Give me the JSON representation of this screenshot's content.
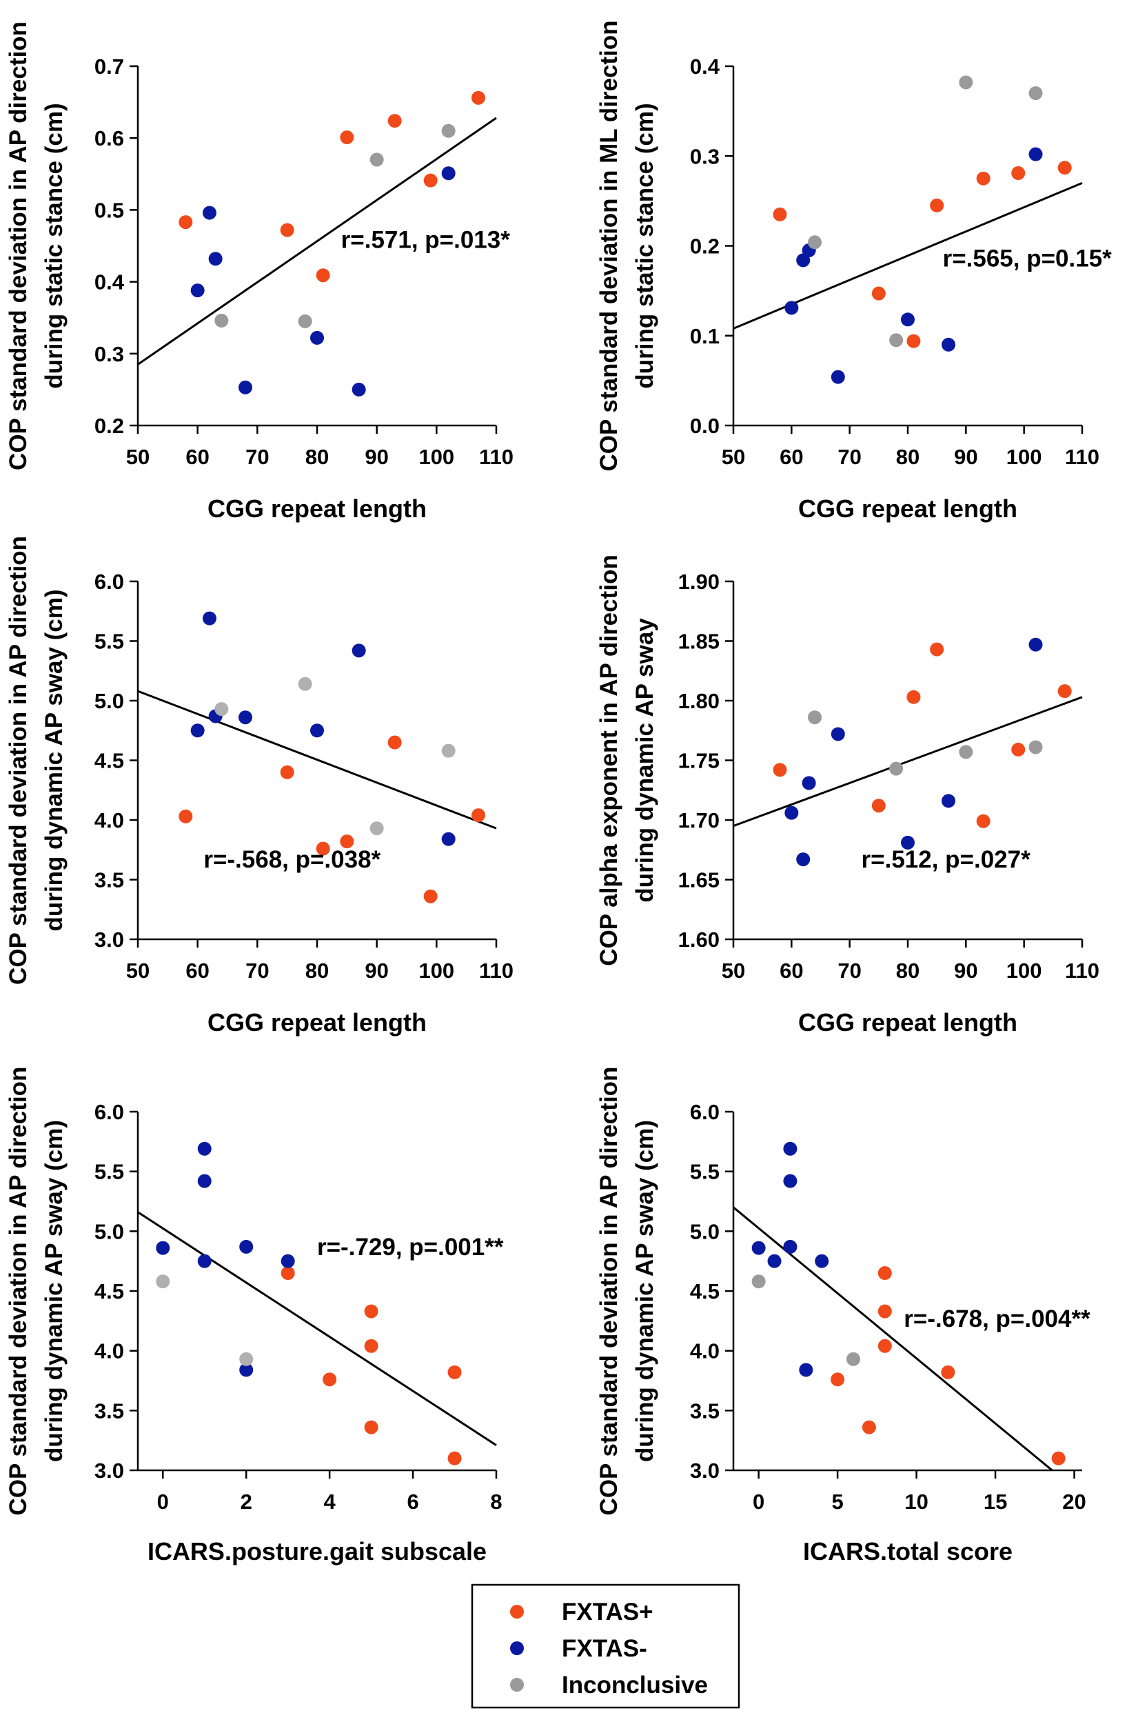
{
  "figure": {
    "legend": {
      "entries": [
        {
          "label": "FXTAS+",
          "color": "#f04a1a"
        },
        {
          "label": "FXTAS-",
          "color": "#0a1aa0"
        },
        {
          "label": "Inconclusive",
          "color": "#9a9a9a"
        }
      ]
    }
  },
  "chart_data": [
    {
      "type": "scatter",
      "panel": "top-left",
      "xlabel": "CGG repeat length",
      "ylabel_lines": [
        "COP standard deviation in AP direction",
        "during static stance (cm)"
      ],
      "xlim": [
        50,
        110
      ],
      "ylim": [
        0.2,
        0.7
      ],
      "xticks": [
        50,
        60,
        70,
        80,
        90,
        100,
        110
      ],
      "xtick_labels": [
        "50",
        "60",
        "70",
        "80",
        "90",
        "100",
        "110"
      ],
      "yticks": [
        0.2,
        0.3,
        0.4,
        0.5,
        0.6,
        0.7
      ],
      "ytick_labels": [
        "0.2",
        "0.3",
        "0.4",
        "0.5",
        "0.6",
        "0.7"
      ],
      "annotation": "r=.571, p=.013*",
      "annotation_anchor": [
        84,
        0.447
      ],
      "trendline": [
        [
          50,
          0.285
        ],
        [
          110,
          0.628
        ]
      ],
      "series": [
        {
          "name": "FXTAS+",
          "color": "#f04a1a",
          "points": [
            [
              58,
              0.483
            ],
            [
              75,
              0.472
            ],
            [
              81,
              0.409
            ],
            [
              85,
              0.601
            ],
            [
              93,
              0.624
            ],
            [
              99,
              0.541
            ],
            [
              107,
              0.656
            ]
          ]
        },
        {
          "name": "FXTAS-",
          "color": "#0a1aa0",
          "points": [
            [
              60,
              0.388
            ],
            [
              62,
              0.496
            ],
            [
              63,
              0.432
            ],
            [
              68,
              0.253
            ],
            [
              80,
              0.322
            ],
            [
              87,
              0.25
            ],
            [
              102,
              0.551
            ]
          ]
        },
        {
          "name": "Inconclusive",
          "color": "#9a9a9a",
          "points": [
            [
              64,
              0.346
            ],
            [
              78,
              0.345
            ],
            [
              90,
              0.57
            ],
            [
              102,
              0.61
            ]
          ]
        }
      ]
    },
    {
      "type": "scatter",
      "panel": "top-right",
      "xlabel": "CGG repeat length",
      "ylabel_lines": [
        "COP standard deviation in ML direction",
        "during static stance (cm)"
      ],
      "xlim": [
        50,
        110
      ],
      "ylim": [
        0.0,
        0.4
      ],
      "xticks": [
        50,
        60,
        70,
        80,
        90,
        100,
        110
      ],
      "xtick_labels": [
        "50",
        "60",
        "70",
        "80",
        "90",
        "100",
        "110"
      ],
      "yticks": [
        0.0,
        0.1,
        0.2,
        0.3,
        0.4
      ],
      "ytick_labels": [
        "0.0",
        "0.1",
        "0.2",
        "0.3",
        "0.4"
      ],
      "annotation": "r=.565, p=0.15*",
      "annotation_anchor": [
        86,
        0.177
      ],
      "trendline": [
        [
          50,
          0.108
        ],
        [
          110,
          0.27
        ]
      ],
      "series": [
        {
          "name": "FXTAS+",
          "color": "#f04a1a",
          "points": [
            [
              58,
              0.235
            ],
            [
              75,
              0.147
            ],
            [
              81,
              0.094
            ],
            [
              85,
              0.245
            ],
            [
              93,
              0.275
            ],
            [
              99,
              0.281
            ],
            [
              107,
              0.287
            ]
          ]
        },
        {
          "name": "FXTAS-",
          "color": "#0a1aa0",
          "points": [
            [
              60,
              0.131
            ],
            [
              62,
              0.184
            ],
            [
              63,
              0.195
            ],
            [
              68,
              0.054
            ],
            [
              80,
              0.118
            ],
            [
              87,
              0.09
            ],
            [
              102,
              0.302
            ]
          ]
        },
        {
          "name": "Inconclusive",
          "color": "#9a9a9a",
          "points": [
            [
              64,
              0.204
            ],
            [
              78,
              0.095
            ],
            [
              90,
              0.382
            ],
            [
              102,
              0.37
            ]
          ]
        }
      ]
    },
    {
      "type": "scatter",
      "panel": "middle-left",
      "xlabel": "CGG repeat length",
      "ylabel_lines": [
        "COP standard deviation in AP direction",
        "during dynamic AP sway (cm)"
      ],
      "xlim": [
        50,
        110
      ],
      "ylim": [
        3.0,
        6.0
      ],
      "xticks": [
        50,
        60,
        70,
        80,
        90,
        100,
        110
      ],
      "xtick_labels": [
        "50",
        "60",
        "70",
        "80",
        "90",
        "100",
        "110"
      ],
      "yticks": [
        3.0,
        3.5,
        4.0,
        4.5,
        5.0,
        5.5,
        6.0
      ],
      "ytick_labels": [
        "3.0",
        "3.5",
        "4.0",
        "4.5",
        "5.0",
        "5.5",
        "6.0"
      ],
      "annotation": "r=-.568, p=.038*",
      "annotation_anchor": [
        61,
        3.6
      ],
      "trendline": [
        [
          50,
          5.08
        ],
        [
          110,
          3.93
        ]
      ],
      "series": [
        {
          "name": "FXTAS+",
          "color": "#f04a1a",
          "points": [
            [
              58,
              4.03
            ],
            [
              75,
              4.4
            ],
            [
              81,
              3.76
            ],
            [
              85,
              3.82
            ],
            [
              93,
              4.65
            ],
            [
              99,
              3.36
            ],
            [
              107,
              4.04
            ]
          ]
        },
        {
          "name": "FXTAS-",
          "color": "#0a1aa0",
          "points": [
            [
              60,
              4.75
            ],
            [
              62,
              5.69
            ],
            [
              63,
              4.87
            ],
            [
              68,
              4.86
            ],
            [
              80,
              4.75
            ],
            [
              87,
              5.42
            ],
            [
              102,
              3.84
            ]
          ]
        },
        {
          "name": "Inconclusive",
          "color": "#b0b0b0",
          "points": [
            [
              64,
              4.93
            ],
            [
              78,
              5.14
            ],
            [
              90,
              3.93
            ],
            [
              102,
              4.58
            ]
          ]
        }
      ]
    },
    {
      "type": "scatter",
      "panel": "middle-right",
      "xlabel": "CGG repeat length",
      "ylabel_lines": [
        "COP alpha exponent in AP direction",
        "during dynamic AP sway"
      ],
      "xlim": [
        50,
        110
      ],
      "ylim": [
        1.6,
        1.9
      ],
      "xticks": [
        50,
        60,
        70,
        80,
        90,
        100,
        110
      ],
      "xtick_labels": [
        "50",
        "60",
        "70",
        "80",
        "90",
        "100",
        "110"
      ],
      "yticks": [
        1.6,
        1.65,
        1.7,
        1.75,
        1.8,
        1.85,
        1.9
      ],
      "ytick_labels": [
        "1.60",
        "1.65",
        "1.70",
        "1.75",
        "1.80",
        "1.85",
        "1.90"
      ],
      "annotation": "r=.512, p=.027*",
      "annotation_anchor": [
        72,
        1.66
      ],
      "trendline": [
        [
          50,
          1.695
        ],
        [
          110,
          1.803
        ]
      ],
      "series": [
        {
          "name": "FXTAS+",
          "color": "#f04a1a",
          "points": [
            [
              58,
              1.742
            ],
            [
              75,
              1.712
            ],
            [
              81,
              1.803
            ],
            [
              85,
              1.843
            ],
            [
              93,
              1.699
            ],
            [
              99,
              1.759
            ],
            [
              107,
              1.808
            ]
          ]
        },
        {
          "name": "FXTAS-",
          "color": "#0a1aa0",
          "points": [
            [
              60,
              1.706
            ],
            [
              62,
              1.667
            ],
            [
              63,
              1.731
            ],
            [
              68,
              1.772
            ],
            [
              80,
              1.681
            ],
            [
              87,
              1.716
            ],
            [
              102,
              1.847
            ]
          ]
        },
        {
          "name": "Inconclusive",
          "color": "#9a9a9a",
          "points": [
            [
              64,
              1.786
            ],
            [
              78,
              1.743
            ],
            [
              90,
              1.757
            ],
            [
              102,
              1.761
            ]
          ]
        }
      ]
    },
    {
      "type": "scatter",
      "panel": "bottom-left",
      "xlabel": "ICARS.posture.gait subscale",
      "ylabel_lines": [
        "COP standard deviation in AP direction",
        "during dynamic AP sway (cm)"
      ],
      "xlim": [
        -0.6,
        8
      ],
      "ylim": [
        3.0,
        6.0
      ],
      "xticks": [
        0,
        2,
        4,
        6,
        8
      ],
      "xtick_labels": [
        "0",
        "2",
        "4",
        "6",
        "8"
      ],
      "yticks": [
        3.0,
        3.5,
        4.0,
        4.5,
        5.0,
        5.5,
        6.0
      ],
      "ytick_labels": [
        "3.0",
        "3.5",
        "4.0",
        "4.5",
        "5.0",
        "5.5",
        "6.0"
      ],
      "annotation": "r=-.729, p=.001**",
      "annotation_anchor": [
        3.7,
        4.8
      ],
      "trendline": [
        [
          -0.6,
          5.16
        ],
        [
          8,
          3.21
        ]
      ],
      "series": [
        {
          "name": "FXTAS+",
          "color": "#f04a1a",
          "points": [
            [
              3,
              4.65
            ],
            [
              4,
              3.76
            ],
            [
              5,
              4.33
            ],
            [
              5,
              4.04
            ],
            [
              5,
              3.36
            ],
            [
              7,
              3.82
            ],
            [
              7,
              3.1
            ]
          ]
        },
        {
          "name": "FXTAS-",
          "color": "#0a1aa0",
          "points": [
            [
              0,
              4.86
            ],
            [
              1,
              5.69
            ],
            [
              1,
              5.42
            ],
            [
              1,
              4.75
            ],
            [
              2,
              4.87
            ],
            [
              2,
              3.84
            ],
            [
              3,
              4.75
            ]
          ]
        },
        {
          "name": "Inconclusive",
          "color": "#b0b0b0",
          "points": [
            [
              0,
              4.58
            ],
            [
              2,
              3.93
            ]
          ]
        }
      ]
    },
    {
      "type": "scatter",
      "panel": "bottom-right",
      "xlabel": "ICARS.total score",
      "ylabel_lines": [
        "COP standard deviation in AP direction",
        "during dynamic AP sway (cm)"
      ],
      "xlim": [
        -1.6,
        20.5
      ],
      "ylim": [
        3.0,
        6.0
      ],
      "xticks": [
        0,
        5,
        10,
        15,
        20
      ],
      "xtick_labels": [
        "0",
        "5",
        "10",
        "15",
        "20"
      ],
      "yticks": [
        3.0,
        3.5,
        4.0,
        4.5,
        5.0,
        5.5,
        6.0
      ],
      "ytick_labels": [
        "3.0",
        "3.5",
        "4.0",
        "4.5",
        "5.0",
        "5.5",
        "6.0"
      ],
      "annotation": "r=-.678, p=.004**",
      "annotation_anchor": [
        9.2,
        4.2
      ],
      "trendline": [
        [
          -1.6,
          5.2
        ],
        [
          18.6,
          3.0
        ]
      ],
      "series": [
        {
          "name": "FXTAS+",
          "color": "#f04a1a",
          "points": [
            [
              5,
              3.76
            ],
            [
              7,
              3.36
            ],
            [
              8,
              4.65
            ],
            [
              8,
              4.33
            ],
            [
              8,
              4.04
            ],
            [
              12,
              3.82
            ],
            [
              19,
              3.1
            ]
          ]
        },
        {
          "name": "FXTAS-",
          "color": "#0a1aa0",
          "points": [
            [
              0,
              4.86
            ],
            [
              1,
              4.75
            ],
            [
              2,
              5.69
            ],
            [
              2,
              5.42
            ],
            [
              2,
              4.87
            ],
            [
              3,
              3.84
            ],
            [
              4,
              4.75
            ]
          ]
        },
        {
          "name": "Inconclusive",
          "color": "#9a9a9a",
          "points": [
            [
              0,
              4.58
            ],
            [
              6,
              3.93
            ]
          ]
        }
      ]
    }
  ]
}
